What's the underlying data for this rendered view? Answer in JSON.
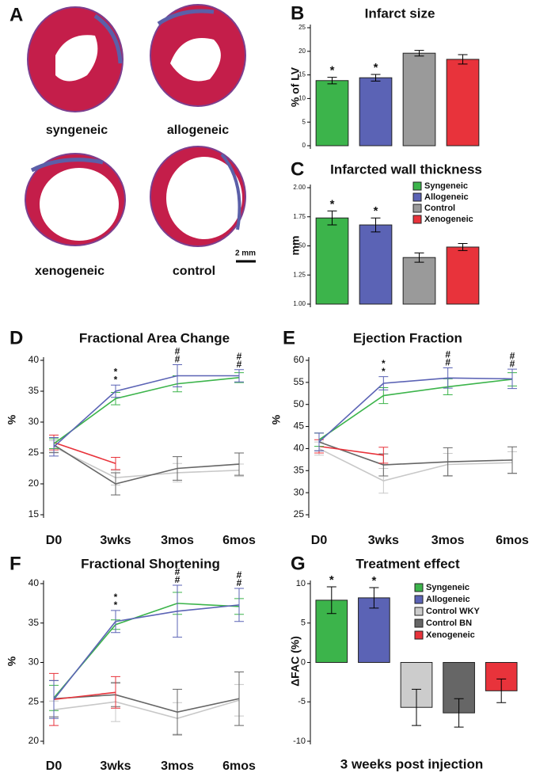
{
  "panel_a": {
    "letter": "A",
    "labels": [
      "syngeneic",
      "allogeneic",
      "xenogeneic",
      "control"
    ],
    "scale_bar": "2 mm"
  },
  "chart_data": [
    {
      "type": "bar",
      "panel": "B",
      "title": "Infarct size",
      "ylabel": "% of LV",
      "values": [
        13.8,
        14.4,
        19.6,
        18.3
      ],
      "errors": [
        0.7,
        0.7,
        0.6,
        1.0
      ],
      "colors": [
        "#3cb44b",
        "#5b63b5",
        "#9a9a9a",
        "#e8333b"
      ],
      "annotations": [
        "*",
        "*",
        null,
        null
      ],
      "ylim": [
        0,
        25
      ],
      "yticks": [
        0,
        5,
        10,
        15,
        20,
        25
      ]
    },
    {
      "type": "bar",
      "panel": "C",
      "title": "Infarcted wall thickness",
      "ylabel": "mm",
      "categories": [
        "Syngeneic",
        "Allogeneic",
        "Control",
        "Xenogeneic"
      ],
      "legend": "upper right",
      "values": [
        1.74,
        1.68,
        1.4,
        1.49
      ],
      "errors": [
        0.06,
        0.06,
        0.04,
        0.03
      ],
      "colors": [
        "#3cb44b",
        "#5b63b5",
        "#9a9a9a",
        "#e8333b"
      ],
      "annotations": [
        "*",
        "*",
        null,
        null
      ],
      "ylim": [
        1,
        2
      ],
      "yticks": [
        {
          "value": 1,
          "label": "1.00"
        },
        {
          "value": 1.25,
          "label": "1.25"
        },
        {
          "value": 1.5,
          "label": "1.50"
        },
        {
          "value": 1.75,
          "label": "1.75"
        },
        {
          "value": 2,
          "label": "2.00"
        }
      ]
    },
    {
      "type": "line",
      "panel": "D",
      "title": "Fractional Area Change",
      "ylabel": "%",
      "categories": [
        "D0",
        "3wks",
        "3mos",
        "6mos"
      ],
      "ylim": [
        15,
        40
      ],
      "yticks": [
        15,
        20,
        25,
        30,
        35,
        40
      ],
      "series": [
        {
          "color": "#c8c8c8",
          "values": [
            26.0,
            21.0,
            21.8,
            22.2
          ],
          "errors": [
            1.0,
            1.2,
            1.5,
            1.0
          ]
        },
        {
          "color": "#666666",
          "values": [
            26.3,
            20.0,
            22.5,
            23.2
          ],
          "errors": [
            1.2,
            1.8,
            1.9,
            1.8
          ]
        },
        {
          "color": "#e8333b",
          "values": [
            26.7,
            23.3,
            null,
            null
          ],
          "errors": [
            1.2,
            1.0,
            null,
            null
          ]
        },
        {
          "color": "#3cb44b",
          "values": [
            26.5,
            33.8,
            36.2,
            37.2
          ],
          "errors": [
            0.8,
            1.0,
            1.3,
            0.8
          ],
          "annotations": [
            null,
            "*",
            "#",
            "#"
          ]
        },
        {
          "color": "#5b63b5",
          "values": [
            26.0,
            35.0,
            37.5,
            37.5
          ],
          "errors": [
            1.5,
            1.0,
            1.8,
            1.0
          ],
          "annotations": [
            null,
            "*",
            "#",
            "#"
          ]
        }
      ]
    },
    {
      "type": "line",
      "panel": "E",
      "title": "Ejection Fraction",
      "ylabel": "%",
      "categories": [
        "D0",
        "3wks",
        "3mos",
        "6mos"
      ],
      "ylim": [
        25,
        60
      ],
      "yticks": [
        25,
        30,
        35,
        40,
        45,
        50,
        55,
        60
      ],
      "series": [
        {
          "color": "#c8c8c8",
          "values": [
            40.0,
            32.7,
            36.4,
            36.8
          ],
          "errors": [
            1.5,
            2.8,
            2.5,
            2.5
          ]
        },
        {
          "color": "#666666",
          "values": [
            41.5,
            36.3,
            37.0,
            37.4
          ],
          "errors": [
            2.0,
            2.5,
            3.2,
            3.0
          ]
        },
        {
          "color": "#e8333b",
          "values": [
            40.5,
            38.5,
            null,
            null
          ],
          "errors": [
            1.5,
            1.8,
            null,
            null
          ]
        },
        {
          "color": "#3cb44b",
          "values": [
            42.0,
            52.0,
            54.0,
            55.7
          ],
          "errors": [
            1.5,
            1.8,
            1.8,
            1.5
          ],
          "annotations": [
            null,
            "*",
            "#",
            "#"
          ]
        },
        {
          "color": "#5b63b5",
          "values": [
            41.5,
            54.8,
            56.0,
            55.8
          ],
          "errors": [
            2.0,
            1.5,
            2.3,
            2.2
          ],
          "annotations": [
            null,
            "*",
            "#",
            "#"
          ]
        }
      ]
    },
    {
      "type": "line",
      "panel": "F",
      "title": "Fractional Shortening",
      "ylabel": "%",
      "categories": [
        "D0",
        "3wks",
        "3mos",
        "6mos"
      ],
      "ylim": [
        20,
        40
      ],
      "yticks": [
        20,
        25,
        30,
        35,
        40
      ],
      "series": [
        {
          "color": "#c8c8c8",
          "values": [
            24.0,
            25.0,
            22.9,
            25.2
          ],
          "errors": [
            1.1,
            2.5,
            2.0,
            2.0
          ]
        },
        {
          "color": "#666666",
          "values": [
            25.4,
            25.9,
            23.7,
            25.4
          ],
          "errors": [
            2.3,
            1.5,
            2.9,
            3.4
          ]
        },
        {
          "color": "#e8333b",
          "values": [
            25.3,
            26.2,
            null,
            null
          ],
          "errors": [
            3.3,
            2.0,
            null,
            null
          ]
        },
        {
          "color": "#3cb44b",
          "values": [
            25.5,
            34.8,
            37.5,
            37.1
          ],
          "errors": [
            1.6,
            0.6,
            1.4,
            1.0
          ],
          "annotations": [
            null,
            "*",
            "#",
            "#"
          ]
        },
        {
          "color": "#5b63b5",
          "values": [
            25.3,
            35.2,
            36.5,
            37.3
          ],
          "errors": [
            2.4,
            1.4,
            3.3,
            2.1
          ],
          "annotations": [
            null,
            "*",
            "#",
            "#"
          ]
        }
      ]
    },
    {
      "type": "bar",
      "panel": "G",
      "title": "Treatment effect",
      "ylabel": "ΔFAC (%)",
      "xlabel": "3 weeks post injection",
      "categories": [
        "Syngeneic",
        "Allogeneic",
        "Control WKY",
        "Control BN",
        "Xenogeneic"
      ],
      "legend": "upper right",
      "values": [
        7.9,
        8.2,
        -5.7,
        -6.4,
        -3.6
      ],
      "errors": [
        1.7,
        1.3,
        2.3,
        1.8,
        1.5
      ],
      "colors": [
        "#3cb44b",
        "#5b63b5",
        "#cccccc",
        "#666666",
        "#e8333b"
      ],
      "annotations": [
        "*",
        "*",
        null,
        null,
        null
      ],
      "ylim": [
        -10,
        10
      ],
      "yticks": [
        -10,
        -5,
        0,
        5,
        10
      ]
    }
  ]
}
